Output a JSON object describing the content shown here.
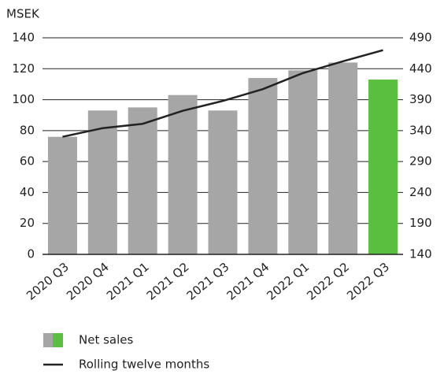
{
  "chart_data": {
    "type": "bar_line",
    "y_label": "MSEK",
    "categories": [
      "2020 Q3",
      "2020 Q4",
      "2021 Q1",
      "2021 Q2",
      "2021 Q3",
      "2021 Q4",
      "2022 Q1",
      "2022 Q2",
      "2022 Q3"
    ],
    "series": [
      {
        "name": "Net sales",
        "type": "bar",
        "colors": [
          "#a6a6a6",
          "#a6a6a6",
          "#a6a6a6",
          "#a6a6a6",
          "#a6a6a6",
          "#a6a6a6",
          "#a6a6a6",
          "#a6a6a6",
          "#5abf3e"
        ],
        "values": [
          76,
          93,
          95,
          103,
          93,
          114,
          119,
          124,
          113
        ]
      },
      {
        "name": "Rolling twelve months",
        "type": "line",
        "axis": "y2",
        "color": "#222222",
        "values": [
          330,
          344,
          351,
          372,
          388,
          407,
          433,
          452,
          470
        ]
      }
    ],
    "ylim": [
      0,
      140
    ],
    "yticks": [
      0,
      20,
      40,
      60,
      80,
      100,
      120,
      140
    ],
    "y2lim": [
      140,
      490
    ],
    "y2ticks": [
      140,
      190,
      240,
      290,
      340,
      390,
      440,
      490
    ],
    "grid": true
  }
}
